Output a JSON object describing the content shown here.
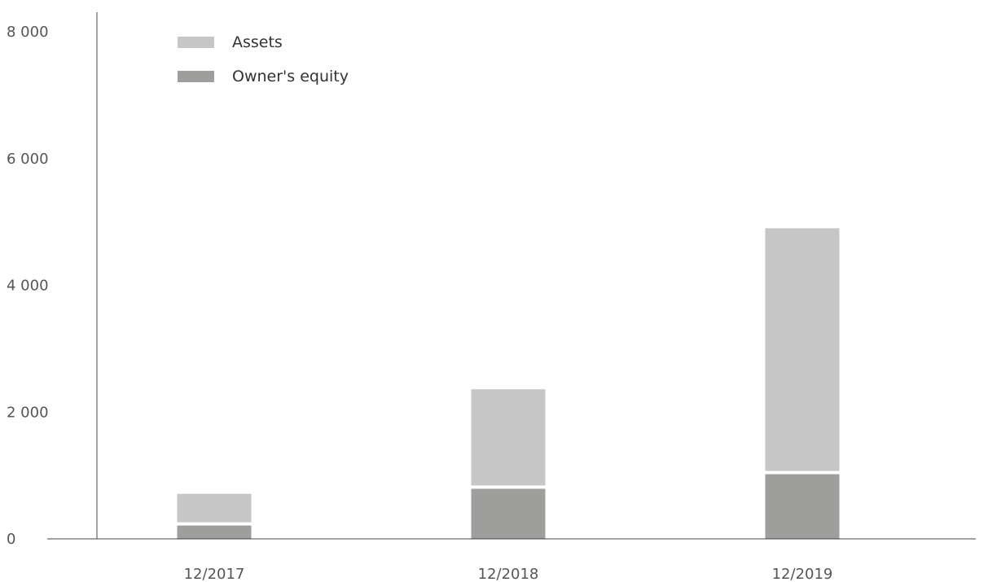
{
  "chart_data": {
    "type": "bar",
    "categories": [
      "12/2017",
      "12/2018",
      "12/2019"
    ],
    "series": [
      {
        "name": "Assets",
        "values": [
          710,
          2360,
          4900
        ],
        "color": "#c6c6c6"
      },
      {
        "name": "Owner's equity",
        "values": [
          210,
          790,
          1020
        ],
        "color": "#9e9e9d"
      }
    ],
    "ylim": [
      0,
      8000
    ],
    "yticks": [
      {
        "value": 0,
        "label": "0"
      },
      {
        "value": 2000,
        "label": "2 000"
      },
      {
        "value": 4000,
        "label": "4 000"
      },
      {
        "value": 6000,
        "label": "6 000"
      },
      {
        "value": 8000,
        "label": "8 000"
      }
    ],
    "grid": false,
    "legend": "top-left",
    "overlay": true
  }
}
